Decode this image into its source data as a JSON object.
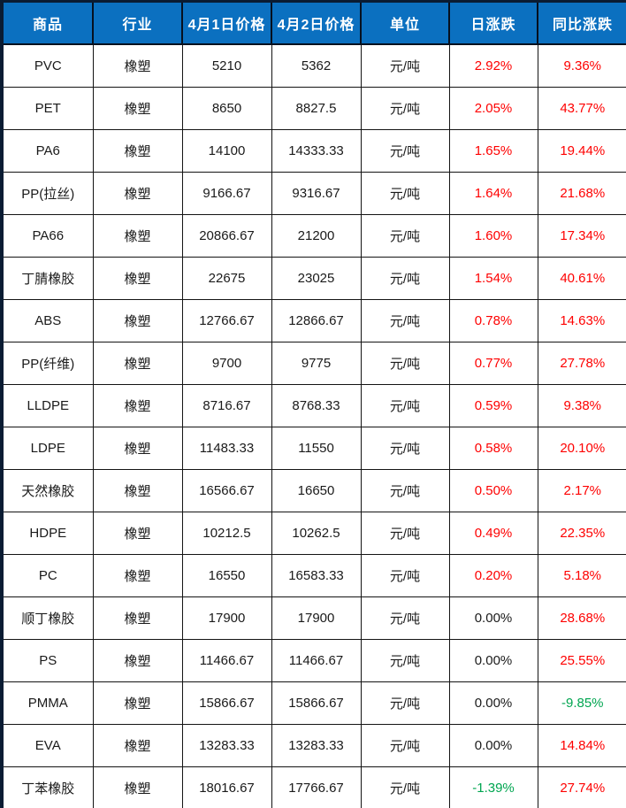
{
  "colors": {
    "header_bg": "#0b70c0",
    "header_text": "#ffffff",
    "grid": "#141414",
    "red": "#fe0000",
    "green": "#00a550",
    "black": "#1a1a1a"
  },
  "chart_data": {
    "type": "table",
    "columns": [
      "商品",
      "行业",
      "4月1日价格",
      "4月2日价格",
      "单位",
      "日涨跌",
      "同比涨跌"
    ],
    "rows": [
      {
        "commodity": "PVC",
        "industry": "橡塑",
        "price_apr1": "5210",
        "price_apr2": "5362",
        "unit": "元/吨",
        "day_change": "2.92%",
        "day_color": "red",
        "yoy_change": "9.36%",
        "yoy_color": "red"
      },
      {
        "commodity": "PET",
        "industry": "橡塑",
        "price_apr1": "8650",
        "price_apr2": "8827.5",
        "unit": "元/吨",
        "day_change": "2.05%",
        "day_color": "red",
        "yoy_change": "43.77%",
        "yoy_color": "red"
      },
      {
        "commodity": "PA6",
        "industry": "橡塑",
        "price_apr1": "14100",
        "price_apr2": "14333.33",
        "unit": "元/吨",
        "day_change": "1.65%",
        "day_color": "red",
        "yoy_change": "19.44%",
        "yoy_color": "red"
      },
      {
        "commodity": "PP(拉丝)",
        "industry": "橡塑",
        "price_apr1": "9166.67",
        "price_apr2": "9316.67",
        "unit": "元/吨",
        "day_change": "1.64%",
        "day_color": "red",
        "yoy_change": "21.68%",
        "yoy_color": "red"
      },
      {
        "commodity": "PA66",
        "industry": "橡塑",
        "price_apr1": "20866.67",
        "price_apr2": "21200",
        "unit": "元/吨",
        "day_change": "1.60%",
        "day_color": "red",
        "yoy_change": "17.34%",
        "yoy_color": "red"
      },
      {
        "commodity": "丁腈橡胶",
        "industry": "橡塑",
        "price_apr1": "22675",
        "price_apr2": "23025",
        "unit": "元/吨",
        "day_change": "1.54%",
        "day_color": "red",
        "yoy_change": "40.61%",
        "yoy_color": "red"
      },
      {
        "commodity": "ABS",
        "industry": "橡塑",
        "price_apr1": "12766.67",
        "price_apr2": "12866.67",
        "unit": "元/吨",
        "day_change": "0.78%",
        "day_color": "red",
        "yoy_change": "14.63%",
        "yoy_color": "red"
      },
      {
        "commodity": "PP(纤维)",
        "industry": "橡塑",
        "price_apr1": "9700",
        "price_apr2": "9775",
        "unit": "元/吨",
        "day_change": "0.77%",
        "day_color": "red",
        "yoy_change": "27.78%",
        "yoy_color": "red"
      },
      {
        "commodity": "LLDPE",
        "industry": "橡塑",
        "price_apr1": "8716.67",
        "price_apr2": "8768.33",
        "unit": "元/吨",
        "day_change": "0.59%",
        "day_color": "red",
        "yoy_change": "9.38%",
        "yoy_color": "red"
      },
      {
        "commodity": "LDPE",
        "industry": "橡塑",
        "price_apr1": "11483.33",
        "price_apr2": "11550",
        "unit": "元/吨",
        "day_change": "0.58%",
        "day_color": "red",
        "yoy_change": "20.10%",
        "yoy_color": "red"
      },
      {
        "commodity": "天然橡胶",
        "industry": "橡塑",
        "price_apr1": "16566.67",
        "price_apr2": "16650",
        "unit": "元/吨",
        "day_change": "0.50%",
        "day_color": "red",
        "yoy_change": "2.17%",
        "yoy_color": "red"
      },
      {
        "commodity": "HDPE",
        "industry": "橡塑",
        "price_apr1": "10212.5",
        "price_apr2": "10262.5",
        "unit": "元/吨",
        "day_change": "0.49%",
        "day_color": "red",
        "yoy_change": "22.35%",
        "yoy_color": "red"
      },
      {
        "commodity": "PC",
        "industry": "橡塑",
        "price_apr1": "16550",
        "price_apr2": "16583.33",
        "unit": "元/吨",
        "day_change": "0.20%",
        "day_color": "red",
        "yoy_change": "5.18%",
        "yoy_color": "red"
      },
      {
        "commodity": "顺丁橡胶",
        "industry": "橡塑",
        "price_apr1": "17900",
        "price_apr2": "17900",
        "unit": "元/吨",
        "day_change": "0.00%",
        "day_color": "black",
        "yoy_change": "28.68%",
        "yoy_color": "red"
      },
      {
        "commodity": "PS",
        "industry": "橡塑",
        "price_apr1": "11466.67",
        "price_apr2": "11466.67",
        "unit": "元/吨",
        "day_change": "0.00%",
        "day_color": "black",
        "yoy_change": "25.55%",
        "yoy_color": "red"
      },
      {
        "commodity": "PMMA",
        "industry": "橡塑",
        "price_apr1": "15866.67",
        "price_apr2": "15866.67",
        "unit": "元/吨",
        "day_change": "0.00%",
        "day_color": "black",
        "yoy_change": "-9.85%",
        "yoy_color": "green"
      },
      {
        "commodity": "EVA",
        "industry": "橡塑",
        "price_apr1": "13283.33",
        "price_apr2": "13283.33",
        "unit": "元/吨",
        "day_change": "0.00%",
        "day_color": "black",
        "yoy_change": "14.84%",
        "yoy_color": "red"
      },
      {
        "commodity": "丁苯橡胶",
        "industry": "橡塑",
        "price_apr1": "18016.67",
        "price_apr2": "17766.67",
        "unit": "元/吨",
        "day_change": "-1.39%",
        "day_color": "green",
        "yoy_change": "27.74%",
        "yoy_color": "red"
      }
    ]
  }
}
